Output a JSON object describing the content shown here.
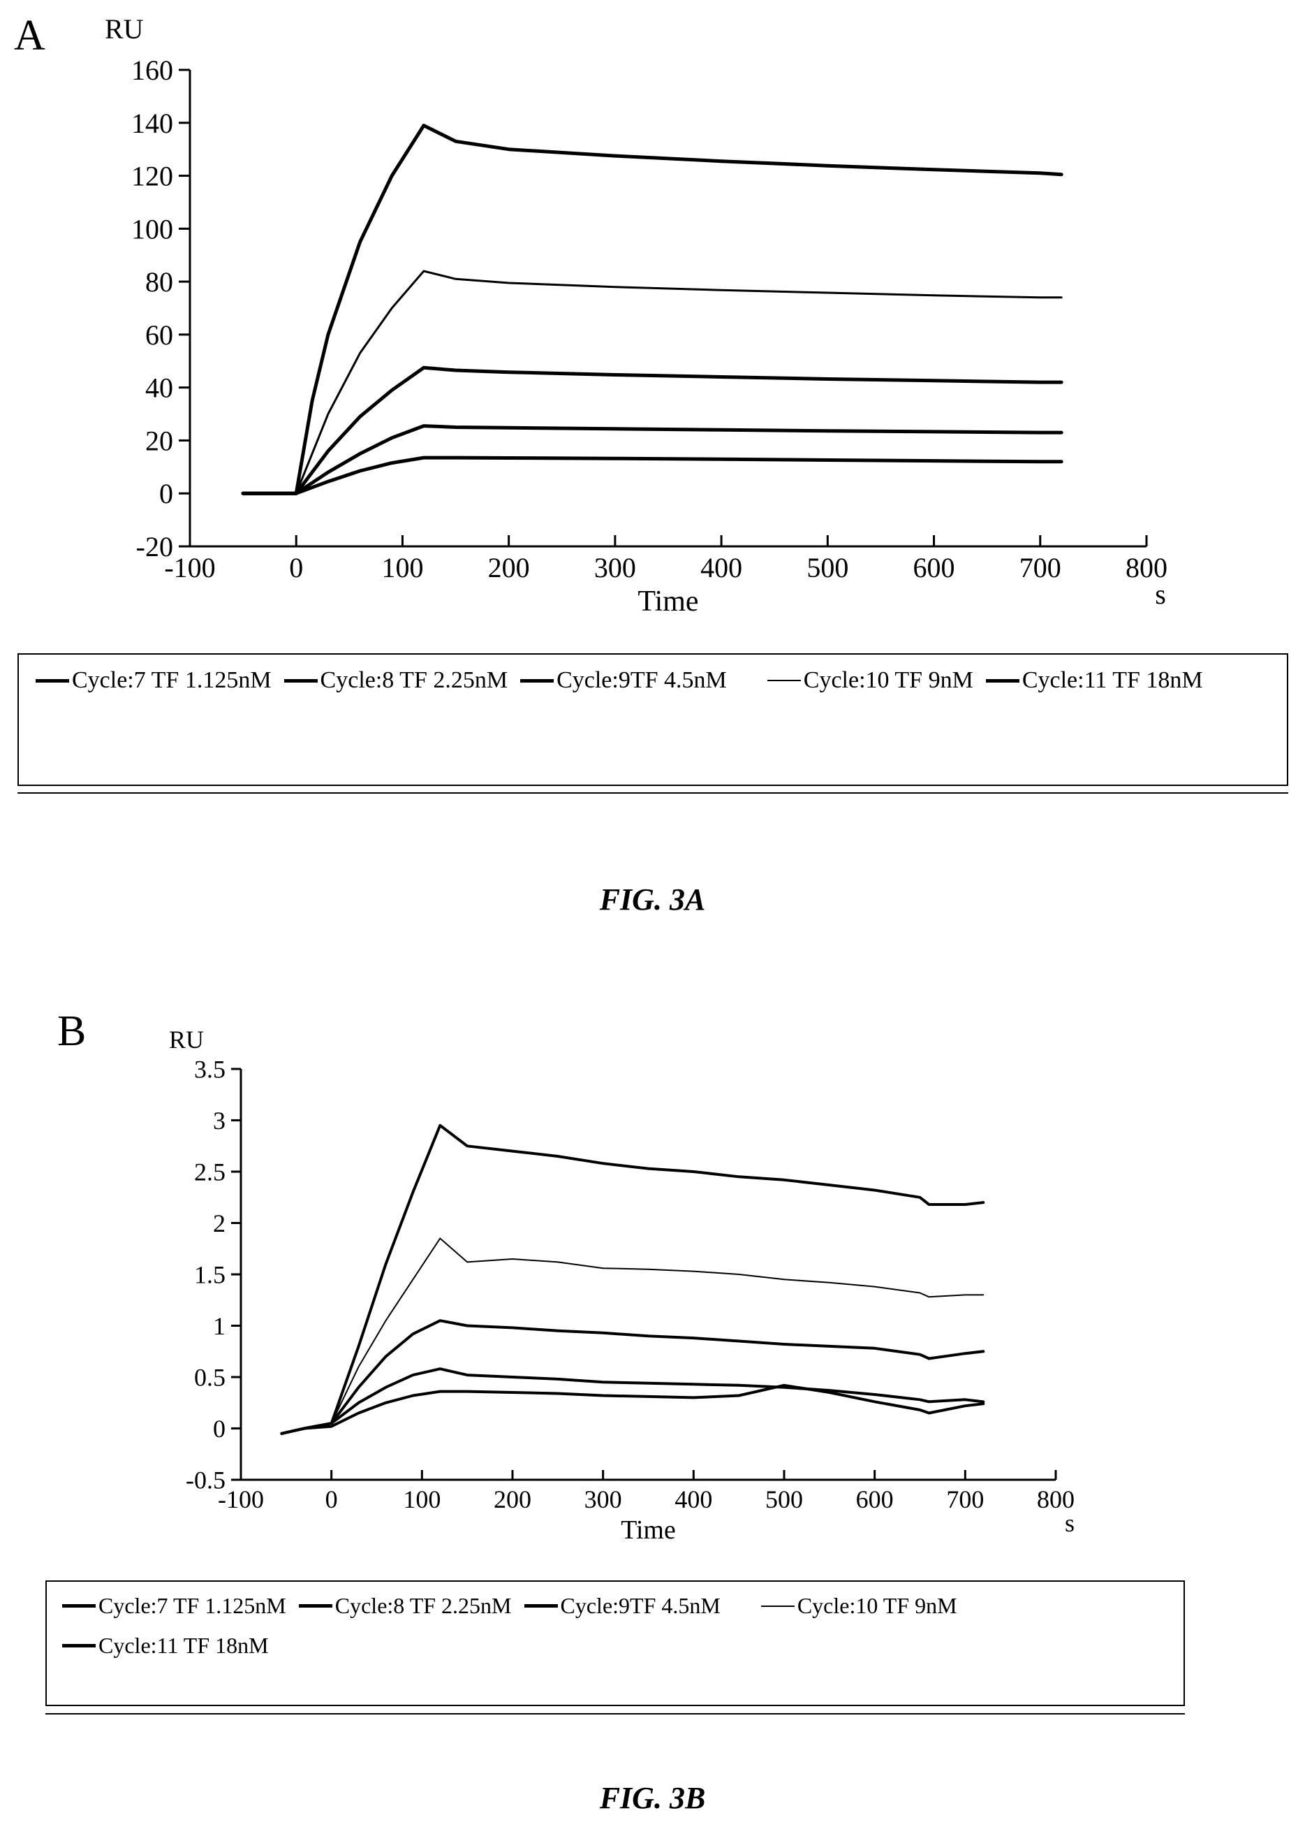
{
  "page": {
    "panels": [
      {
        "letter": "A",
        "caption": "FIG. 3A"
      },
      {
        "letter": "B",
        "caption": "FIG. 3B"
      }
    ]
  },
  "legend": [
    "Cycle:7 TF 1.125nM",
    "Cycle:8 TF 2.25nM",
    "Cycle:9TF 4.5nM",
    "Cycle:10 TF 9nM",
    "Cycle:11 TF 18nM"
  ],
  "chart_data": [
    {
      "type": "line",
      "ylabel": "RU",
      "xlabel": "Time",
      "xunit": "s",
      "xlim": [
        -100,
        800
      ],
      "ylim": [
        -20,
        160
      ],
      "xticks": [
        -100,
        0,
        100,
        200,
        300,
        400,
        500,
        600,
        700,
        800
      ],
      "yticks": [
        -20,
        0,
        20,
        40,
        60,
        80,
        100,
        120,
        140,
        160
      ],
      "grid": false,
      "legend_position": "bottom",
      "series": [
        {
          "name": "Cycle:7 TF 1.125nM",
          "x": [
            -50,
            0,
            30,
            60,
            90,
            120,
            150,
            200,
            300,
            400,
            500,
            600,
            700,
            720
          ],
          "y": [
            0,
            0,
            4.5,
            8.5,
            11.5,
            13.5,
            13.5,
            13.4,
            13.2,
            12.9,
            12.6,
            12.3,
            12.0,
            12.0
          ]
        },
        {
          "name": "Cycle:8 TF 2.25nM",
          "x": [
            -50,
            0,
            30,
            60,
            90,
            120,
            150,
            200,
            300,
            400,
            500,
            600,
            700,
            720
          ],
          "y": [
            0,
            0,
            8,
            15,
            21,
            25.5,
            25,
            24.8,
            24.4,
            24,
            23.6,
            23.3,
            23,
            23
          ]
        },
        {
          "name": "Cycle:9TF 4.5nM",
          "x": [
            -50,
            0,
            30,
            60,
            90,
            120,
            150,
            200,
            300,
            400,
            500,
            600,
            700,
            720
          ],
          "y": [
            0,
            0,
            16,
            29,
            39,
            47.5,
            46.5,
            45.8,
            44.8,
            44,
            43.2,
            42.6,
            42,
            42
          ]
        },
        {
          "name": "Cycle:10 TF 9nM",
          "x": [
            -50,
            0,
            30,
            60,
            90,
            120,
            150,
            200,
            300,
            400,
            500,
            600,
            700,
            720
          ],
          "y": [
            0,
            0,
            30,
            53,
            70,
            84,
            81,
            79.5,
            78,
            76.8,
            75.8,
            74.8,
            74,
            74
          ]
        },
        {
          "name": "Cycle:11 TF 18nM",
          "x": [
            -50,
            0,
            15,
            30,
            60,
            90,
            120,
            150,
            200,
            300,
            400,
            500,
            600,
            700,
            720
          ],
          "y": [
            0,
            0,
            35,
            60,
            95,
            120,
            139,
            133,
            130,
            127.5,
            125.5,
            123.8,
            122.3,
            121,
            120.5
          ]
        }
      ]
    },
    {
      "type": "line",
      "ylabel": "RU",
      "xlabel": "Time",
      "xunit": "s",
      "xlim": [
        -100,
        800
      ],
      "ylim": [
        -0.5,
        3.5
      ],
      "xticks": [
        -100,
        0,
        100,
        200,
        300,
        400,
        500,
        600,
        700,
        800
      ],
      "yticks": [
        -0.5,
        0,
        0.5,
        1,
        1.5,
        2,
        2.5,
        3,
        3.5
      ],
      "grid": false,
      "legend_position": "bottom",
      "series": [
        {
          "name": "Cycle:7 TF 1.125nM",
          "x": [
            -55,
            -30,
            0,
            30,
            60,
            90,
            120,
            150,
            200,
            250,
            300,
            350,
            400,
            450,
            500,
            550,
            600,
            650,
            660,
            700,
            720
          ],
          "y": [
            -0.05,
            0,
            0.02,
            0.15,
            0.25,
            0.32,
            0.36,
            0.36,
            0.35,
            0.34,
            0.32,
            0.31,
            0.3,
            0.32,
            0.42,
            0.35,
            0.26,
            0.18,
            0.15,
            0.22,
            0.24
          ]
        },
        {
          "name": "Cycle:8 TF 2.25nM",
          "x": [
            -55,
            -30,
            0,
            30,
            60,
            90,
            120,
            150,
            200,
            250,
            300,
            350,
            400,
            450,
            500,
            550,
            600,
            650,
            660,
            700,
            720
          ],
          "y": [
            -0.05,
            0,
            0.05,
            0.25,
            0.4,
            0.52,
            0.58,
            0.52,
            0.5,
            0.48,
            0.45,
            0.44,
            0.43,
            0.42,
            0.4,
            0.37,
            0.33,
            0.28,
            0.26,
            0.28,
            0.26
          ]
        },
        {
          "name": "Cycle:9TF 4.5nM",
          "x": [
            -55,
            -30,
            0,
            30,
            60,
            90,
            120,
            150,
            200,
            250,
            300,
            350,
            400,
            450,
            500,
            550,
            600,
            650,
            660,
            700,
            720
          ],
          "y": [
            -0.05,
            0,
            0.05,
            0.4,
            0.7,
            0.92,
            1.05,
            1.0,
            0.98,
            0.95,
            0.93,
            0.9,
            0.88,
            0.85,
            0.82,
            0.8,
            0.78,
            0.72,
            0.68,
            0.73,
            0.75
          ]
        },
        {
          "name": "Cycle:10 TF 9nM",
          "x": [
            -55,
            -30,
            0,
            30,
            60,
            90,
            120,
            150,
            200,
            250,
            300,
            350,
            400,
            450,
            500,
            550,
            600,
            650,
            660,
            700,
            720
          ],
          "y": [
            -0.05,
            0,
            0.05,
            0.6,
            1.05,
            1.45,
            1.85,
            1.62,
            1.65,
            1.62,
            1.56,
            1.55,
            1.53,
            1.5,
            1.45,
            1.42,
            1.38,
            1.32,
            1.28,
            1.3,
            1.3
          ]
        },
        {
          "name": "Cycle:11 TF 18nM",
          "x": [
            -55,
            -30,
            0,
            30,
            60,
            90,
            120,
            150,
            200,
            250,
            300,
            350,
            400,
            450,
            500,
            550,
            600,
            650,
            660,
            700,
            720
          ],
          "y": [
            -0.05,
            0,
            0.05,
            0.8,
            1.6,
            2.3,
            2.95,
            2.75,
            2.7,
            2.65,
            2.58,
            2.53,
            2.5,
            2.45,
            2.42,
            2.37,
            2.32,
            2.25,
            2.18,
            2.18,
            2.2
          ]
        }
      ]
    }
  ]
}
